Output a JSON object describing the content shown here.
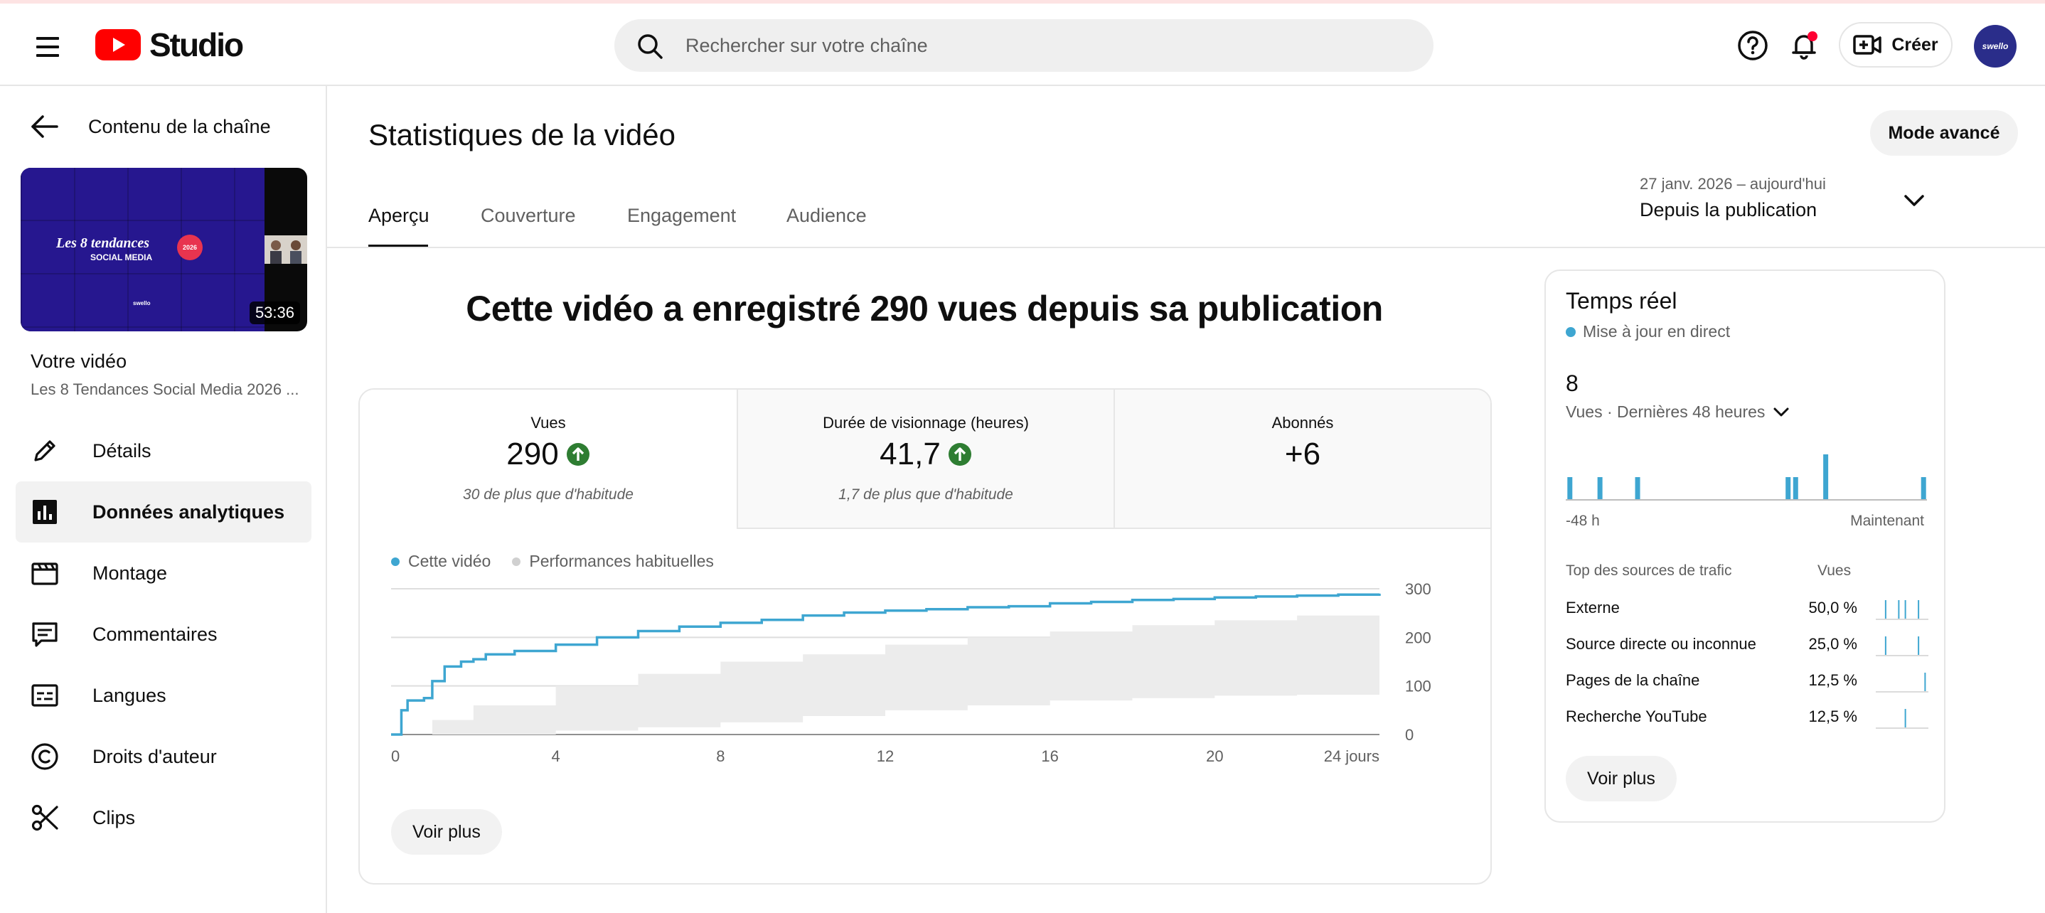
{
  "header": {
    "logo_text": "Studio",
    "search_placeholder": "Rechercher sur votre chaîne",
    "create_label": "Créer",
    "avatar_text": "swello"
  },
  "sidebar": {
    "back_label": "Contenu de la chaîne",
    "thumbnail": {
      "title": "Les 8 tendances",
      "subtitle": "SOCIAL MEDIA",
      "badge": "2026",
      "brand": "swello",
      "duration": "53:36"
    },
    "your_video_label": "Votre vidéo",
    "video_title": "Les 8 Tendances Social Media 2026 ...",
    "items": [
      {
        "label": "Détails",
        "icon": "pencil-icon"
      },
      {
        "label": "Données analytiques",
        "icon": "analytics-icon",
        "active": true
      },
      {
        "label": "Montage",
        "icon": "clapperboard-icon"
      },
      {
        "label": "Commentaires",
        "icon": "comment-icon"
      },
      {
        "label": "Langues",
        "icon": "subtitles-icon"
      },
      {
        "label": "Droits d'auteur",
        "icon": "copyright-icon"
      },
      {
        "label": "Clips",
        "icon": "scissors-icon"
      }
    ]
  },
  "main": {
    "title": "Statistiques de la vidéo",
    "advanced_mode_label": "Mode avancé",
    "tabs": [
      {
        "label": "Aperçu",
        "active": true
      },
      {
        "label": "Couverture"
      },
      {
        "label": "Engagement"
      },
      {
        "label": "Audience"
      }
    ],
    "date_range": {
      "dates": "27 janv. 2026 – aujourd'hui",
      "label": "Depuis la publication"
    },
    "headline": "Cette vidéo a enregistré 290 vues depuis sa publication",
    "metrics": [
      {
        "label": "Vues",
        "value": "290",
        "trend": "up",
        "note": "30 de plus que d'habitude"
      },
      {
        "label": "Durée de visionnage (heures)",
        "value": "41,7",
        "trend": "up",
        "note": "1,7 de plus que d'habitude"
      },
      {
        "label": "Abonnés",
        "value": "+6",
        "trend": "none",
        "note": ""
      }
    ],
    "see_more_label": "Voir plus"
  },
  "chart_data": {
    "type": "line",
    "series": [
      {
        "name": "Cette vidéo",
        "color": "#3ea6d1",
        "points": [
          [
            0,
            0
          ],
          [
            0.25,
            50
          ],
          [
            0.4,
            70
          ],
          [
            0.8,
            75
          ],
          [
            1,
            110
          ],
          [
            1.3,
            140
          ],
          [
            1.7,
            150
          ],
          [
            2,
            155
          ],
          [
            2.3,
            165
          ],
          [
            3,
            172
          ],
          [
            4,
            185
          ],
          [
            5,
            200
          ],
          [
            6,
            213
          ],
          [
            7,
            222
          ],
          [
            8,
            230
          ],
          [
            9,
            236
          ],
          [
            10,
            245
          ],
          [
            11,
            251
          ],
          [
            12,
            255
          ],
          [
            13,
            258
          ],
          [
            14,
            262
          ],
          [
            15,
            264
          ],
          [
            16,
            270
          ],
          [
            17,
            273
          ],
          [
            18,
            277
          ],
          [
            19,
            279
          ],
          [
            20,
            282
          ],
          [
            21,
            284
          ],
          [
            22,
            286
          ],
          [
            23,
            288
          ],
          [
            24,
            290
          ]
        ]
      },
      {
        "name": "Performances habituelles",
        "color": "#d9d9d9",
        "band_low": [
          [
            0,
            0
          ],
          [
            2,
            0
          ],
          [
            4,
            8
          ],
          [
            6,
            15
          ],
          [
            8,
            25
          ],
          [
            10,
            38
          ],
          [
            12,
            50
          ],
          [
            14,
            60
          ],
          [
            16,
            70
          ],
          [
            18,
            75
          ],
          [
            20,
            80
          ],
          [
            22,
            82
          ],
          [
            24,
            85
          ]
        ],
        "band_high": [
          [
            0,
            0
          ],
          [
            1,
            30
          ],
          [
            2,
            60
          ],
          [
            4,
            100
          ],
          [
            6,
            125
          ],
          [
            8,
            150
          ],
          [
            10,
            165
          ],
          [
            12,
            185
          ],
          [
            14,
            200
          ],
          [
            16,
            212
          ],
          [
            18,
            225
          ],
          [
            20,
            235
          ],
          [
            22,
            245
          ],
          [
            24,
            255
          ]
        ]
      }
    ],
    "x_ticks": [
      "0",
      "4",
      "8",
      "12",
      "16",
      "20",
      "24 jours"
    ],
    "x_tick_values": [
      0,
      4,
      8,
      12,
      16,
      20,
      24
    ],
    "y_ticks": [
      "300",
      "200",
      "100",
      "0"
    ],
    "y_tick_values": [
      300,
      200,
      100,
      0
    ],
    "xlim": [
      0,
      24
    ],
    "ylim": [
      0,
      300
    ],
    "grid": true,
    "legend_position": "top-left"
  },
  "realtime": {
    "title": "Temps réel",
    "live_label": "Mise à jour en direct",
    "count": "8",
    "period_label": "Vues · Dernières 48 heures",
    "spark_values": [
      1,
      0,
      0,
      0,
      1,
      0,
      0,
      0,
      0,
      1,
      0,
      0,
      0,
      0,
      0,
      0,
      0,
      0,
      0,
      0,
      0,
      0,
      0,
      0,
      0,
      0,
      0,
      0,
      0,
      1,
      1,
      0,
      0,
      0,
      2,
      0,
      0,
      0,
      0,
      0,
      0,
      0,
      0,
      0,
      0,
      0,
      0,
      1
    ],
    "axis_left": "-48 h",
    "axis_right": "Maintenant",
    "sources_header": "Top des sources de trafic",
    "views_header": "Vues",
    "sources": [
      {
        "name": "Externe",
        "pct": "50,0 %",
        "spark": [
          0,
          1,
          0,
          1,
          1,
          0,
          1,
          0
        ]
      },
      {
        "name": "Source directe ou inconnue",
        "pct": "25,0 %",
        "spark": [
          0,
          1,
          0,
          0,
          0,
          0,
          1,
          0
        ]
      },
      {
        "name": "Pages de la chaîne",
        "pct": "12,5 %",
        "spark": [
          0,
          0,
          0,
          0,
          0,
          0,
          0,
          1
        ]
      },
      {
        "name": "Recherche YouTube",
        "pct": "12,5 %",
        "spark": [
          0,
          0,
          0,
          0,
          1,
          0,
          0,
          0
        ]
      }
    ],
    "see_more_label": "Voir plus"
  }
}
